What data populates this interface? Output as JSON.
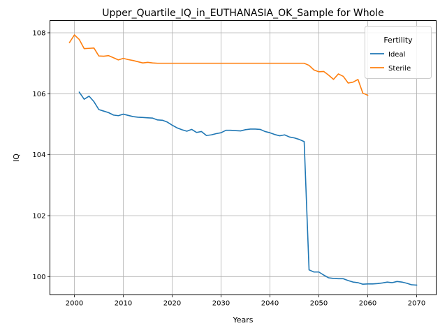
{
  "chart_data": {
    "type": "line",
    "title": "Upper_Quartile_IQ_in_EUTHANASIA_OK_Sample for Whole",
    "xlabel": "Years",
    "ylabel": "IQ",
    "xlim": [
      1995,
      2074
    ],
    "ylim": [
      99.4,
      108.4
    ],
    "xticks": [
      2000,
      2010,
      2020,
      2030,
      2040,
      2050,
      2060,
      2070
    ],
    "yticks": [
      100,
      102,
      104,
      106,
      108
    ],
    "grid": true,
    "legend": {
      "title": "Fertility",
      "location": "top-right"
    },
    "series": [
      {
        "name": "Ideal",
        "color": "#1f77b4",
        "x": [
          2001,
          2002,
          2003,
          2004,
          2005,
          2006,
          2007,
          2008,
          2009,
          2010,
          2011,
          2012,
          2013,
          2014,
          2015,
          2016,
          2017,
          2018,
          2019,
          2020,
          2021,
          2022,
          2023,
          2024,
          2025,
          2026,
          2027,
          2028,
          2029,
          2030,
          2031,
          2032,
          2033,
          2034,
          2035,
          2036,
          2037,
          2038,
          2039,
          2040,
          2041,
          2042,
          2043,
          2044,
          2045,
          2046,
          2047,
          2048,
          2049,
          2050,
          2051,
          2052,
          2053,
          2054,
          2055,
          2056,
          2057,
          2058,
          2059,
          2060,
          2061,
          2062,
          2063,
          2064,
          2065,
          2066,
          2067,
          2068,
          2069,
          2070
        ],
        "y": [
          106.05,
          105.82,
          105.92,
          105.74,
          105.48,
          105.43,
          105.38,
          105.3,
          105.28,
          105.33,
          105.29,
          105.25,
          105.23,
          105.22,
          105.21,
          105.2,
          105.14,
          105.13,
          105.07,
          104.97,
          104.88,
          104.82,
          104.77,
          104.83,
          104.73,
          104.76,
          104.63,
          104.65,
          104.69,
          104.72,
          104.8,
          104.8,
          104.79,
          104.78,
          104.82,
          104.84,
          104.84,
          104.83,
          104.76,
          104.72,
          104.66,
          104.62,
          104.65,
          104.58,
          104.55,
          104.5,
          104.43,
          100.22,
          100.15,
          100.15,
          100.05,
          99.96,
          99.94,
          99.93,
          99.93,
          99.87,
          99.82,
          99.8,
          99.75,
          99.76,
          99.76,
          99.77,
          99.79,
          99.82,
          99.8,
          99.84,
          99.82,
          99.78,
          99.73,
          99.72
        ]
      },
      {
        "name": "Sterile",
        "color": "#ff7f0e",
        "x": [
          1999,
          2000,
          2001,
          2002,
          2003,
          2004,
          2005,
          2006,
          2007,
          2008,
          2009,
          2010,
          2011,
          2012,
          2013,
          2014,
          2015,
          2016,
          2017,
          2018,
          2019,
          2020,
          2021,
          2022,
          2023,
          2024,
          2025,
          2026,
          2027,
          2028,
          2029,
          2030,
          2031,
          2032,
          2033,
          2034,
          2035,
          2036,
          2037,
          2038,
          2039,
          2040,
          2041,
          2042,
          2043,
          2044,
          2045,
          2046,
          2047,
          2048,
          2049,
          2050,
          2051,
          2052,
          2053,
          2054,
          2055,
          2056,
          2057,
          2058,
          2059,
          2060
        ],
        "y": [
          107.68,
          107.93,
          107.78,
          107.48,
          107.49,
          107.5,
          107.24,
          107.23,
          107.25,
          107.18,
          107.11,
          107.16,
          107.12,
          107.09,
          107.05,
          107.01,
          107.03,
          107.01,
          107.0,
          107.0,
          107.0,
          107.0,
          107.0,
          107.0,
          107.0,
          107.0,
          107.0,
          107.0,
          107.0,
          107.0,
          107.0,
          107.0,
          107.0,
          107.0,
          107.0,
          107.0,
          107.0,
          107.0,
          107.0,
          107.0,
          107.0,
          107.0,
          107.0,
          107.0,
          107.0,
          107.0,
          107.0,
          107.0,
          107.0,
          106.93,
          106.78,
          106.72,
          106.73,
          106.61,
          106.47,
          106.65,
          106.57,
          106.35,
          106.38,
          106.47,
          106.02,
          105.95
        ]
      }
    ]
  }
}
